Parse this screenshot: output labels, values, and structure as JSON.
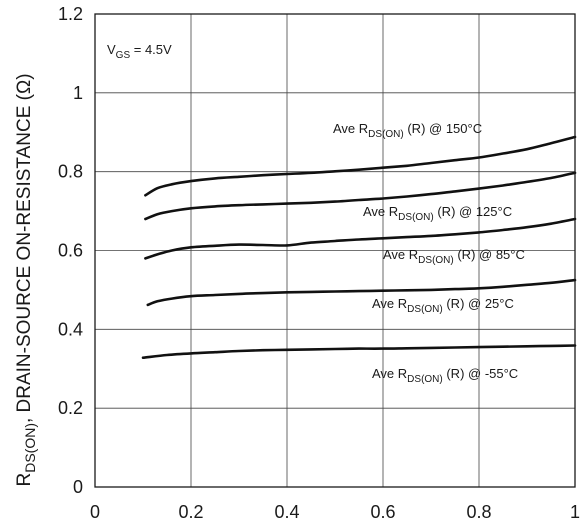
{
  "chart_data": {
    "type": "line",
    "xlabel": "",
    "ylabel": {
      "main": "R",
      "sub": "DS(ON)",
      "rest": ", DRAIN-SOURCE ON-RESISTANCE (Ω)"
    },
    "xlim": [
      0,
      1
    ],
    "ylim": [
      0,
      1.2
    ],
    "xticks": [
      "0",
      "0.2",
      "0.4",
      "0.6",
      "0.8",
      "1"
    ],
    "yticks": [
      "0",
      "0.2",
      "0.4",
      "0.6",
      "0.8",
      "1",
      "1.2"
    ],
    "grid": true,
    "vgs_label": {
      "main": "V",
      "sub": "GS",
      "rest": " = 4.5V"
    },
    "series": [
      {
        "name": "Ave RDS(ON) (R) @ 150°C",
        "label": {
          "pre": "Ave R",
          "sub": "DS(ON)",
          "post": " (R) @ 150°C"
        },
        "x": [
          0.105,
          0.13,
          0.16,
          0.2,
          0.25,
          0.3,
          0.35,
          0.4,
          0.45,
          0.5,
          0.55,
          0.6,
          0.65,
          0.7,
          0.75,
          0.8,
          0.85,
          0.9,
          0.95,
          1.0
        ],
        "y": [
          0.74,
          0.758,
          0.768,
          0.776,
          0.783,
          0.787,
          0.791,
          0.794,
          0.797,
          0.801,
          0.805,
          0.81,
          0.815,
          0.822,
          0.829,
          0.836,
          0.846,
          0.857,
          0.872,
          0.888
        ]
      },
      {
        "name": "Ave RDS(ON) (R) @ 125°C",
        "label": {
          "pre": "Ave R",
          "sub": "DS(ON)",
          "post": " (R) @ 125°C"
        },
        "x": [
          0.105,
          0.13,
          0.16,
          0.2,
          0.25,
          0.3,
          0.35,
          0.4,
          0.45,
          0.5,
          0.55,
          0.6,
          0.65,
          0.7,
          0.75,
          0.8,
          0.85,
          0.9,
          0.95,
          1.0
        ],
        "y": [
          0.68,
          0.692,
          0.7,
          0.707,
          0.712,
          0.715,
          0.717,
          0.719,
          0.721,
          0.724,
          0.728,
          0.732,
          0.737,
          0.743,
          0.75,
          0.757,
          0.765,
          0.774,
          0.784,
          0.797
        ]
      },
      {
        "name": "Ave RDS(ON) (R) @ 85°C",
        "label": {
          "pre": "Ave R",
          "sub": "DS(ON)",
          "post": " (R) @ 85°C"
        },
        "x": [
          0.105,
          0.13,
          0.16,
          0.2,
          0.25,
          0.3,
          0.35,
          0.4,
          0.45,
          0.5,
          0.55,
          0.6,
          0.65,
          0.7,
          0.75,
          0.8,
          0.85,
          0.9,
          0.95,
          1.0
        ],
        "y": [
          0.58,
          0.59,
          0.6,
          0.608,
          0.612,
          0.615,
          0.614,
          0.613,
          0.62,
          0.624,
          0.628,
          0.631,
          0.634,
          0.637,
          0.641,
          0.646,
          0.652,
          0.659,
          0.668,
          0.68
        ]
      },
      {
        "name": "Ave RDS(ON) (R) @ 25°C",
        "label": {
          "pre": "Ave R",
          "sub": "DS(ON)",
          "post": " (R) @ 25°C"
        },
        "x": [
          0.11,
          0.13,
          0.16,
          0.2,
          0.25,
          0.3,
          0.35,
          0.4,
          0.45,
          0.5,
          0.55,
          0.6,
          0.65,
          0.7,
          0.75,
          0.8,
          0.85,
          0.9,
          0.95,
          1.0
        ],
        "y": [
          0.462,
          0.471,
          0.478,
          0.484,
          0.487,
          0.49,
          0.492,
          0.494,
          0.495,
          0.496,
          0.497,
          0.498,
          0.499,
          0.5,
          0.502,
          0.504,
          0.508,
          0.513,
          0.518,
          0.525
        ]
      },
      {
        "name": "Ave RDS(ON) (R) @ -55°C",
        "label": {
          "pre": "Ave R",
          "sub": "DS(ON)",
          "post": " (R) @ -55°C"
        },
        "x": [
          0.1,
          0.15,
          0.2,
          0.25,
          0.3,
          0.35,
          0.4,
          0.45,
          0.5,
          0.55,
          0.6,
          0.65,
          0.7,
          0.75,
          0.8,
          0.85,
          0.9,
          0.95,
          1.0
        ],
        "y": [
          0.328,
          0.335,
          0.339,
          0.342,
          0.345,
          0.347,
          0.348,
          0.349,
          0.35,
          0.351,
          0.351,
          0.352,
          0.353,
          0.354,
          0.355,
          0.356,
          0.357,
          0.358,
          0.359
        ]
      }
    ]
  }
}
